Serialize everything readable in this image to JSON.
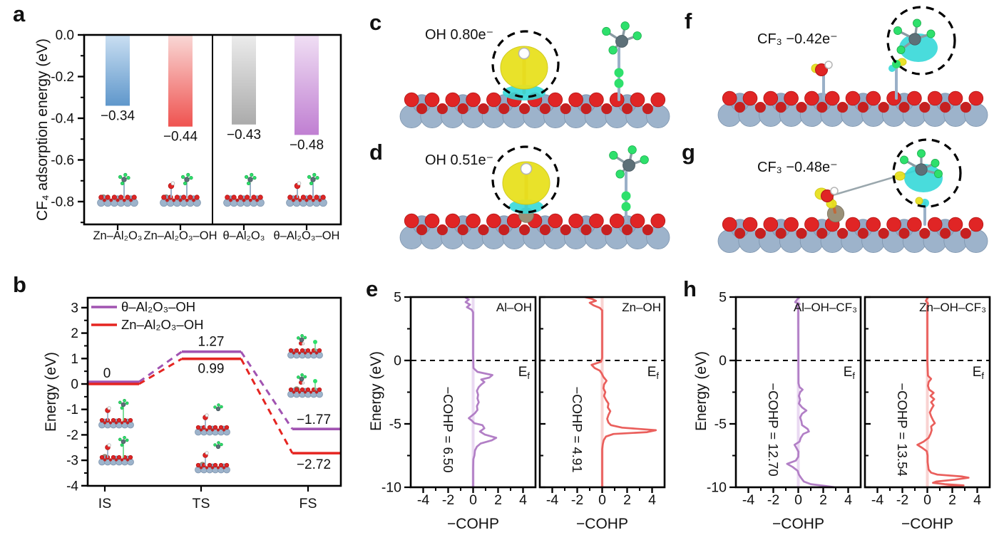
{
  "panels": {
    "a": {
      "label": "a"
    },
    "b": {
      "label": "b"
    },
    "c": {
      "label": "c",
      "annotation": "OH 0.80e⁻"
    },
    "d": {
      "label": "d",
      "annotation": "OH 0.51e⁻"
    },
    "e": {
      "label": "e"
    },
    "f": {
      "label": "f",
      "annotation": "CF₃ −0.42e⁻"
    },
    "g": {
      "label": "g",
      "annotation": "CF₃ −0.48e⁻"
    },
    "h": {
      "label": "h"
    }
  },
  "shared": {
    "fermi": {
      "main": "E",
      "sub": "f"
    }
  },
  "chart_data": [
    {
      "id": "a",
      "type": "bar",
      "ylabel": "CF₄ adsorption energy (eV)",
      "ylim": [
        -0.91,
        0
      ],
      "yticks": [
        {
          "v": 0,
          "label": "0.0"
        },
        {
          "v": -0.2,
          "label": "-0.2"
        },
        {
          "v": -0.4,
          "label": "-0.4"
        },
        {
          "v": -0.6,
          "label": "-0.6"
        },
        {
          "v": -0.8,
          "label": "-0.8"
        }
      ],
      "bars": [
        {
          "category": "Zn–Al₂O₃",
          "value": -0.34,
          "label": "−0.34",
          "color_top": "#cadff2",
          "color_bottom": "#5f97cb"
        },
        {
          "category": "Zn–Al₂O₃–OH",
          "value": -0.44,
          "label": "−0.44",
          "color_top": "#f9d8d6",
          "color_bottom": "#ef5350"
        },
        {
          "category": "θ–Al₂O₃",
          "value": -0.43,
          "label": "−0.43",
          "color_top": "#ececec",
          "color_bottom": "#ababab"
        },
        {
          "category": "θ–Al₂O₃–OH",
          "value": -0.48,
          "label": "−0.48",
          "color_top": "#f0dff4",
          "color_bottom": "#c07fd2"
        }
      ],
      "divider_after_bar": 2
    },
    {
      "id": "b",
      "type": "line",
      "ylabel": "Energy (eV)",
      "ylim": [
        -4,
        3
      ],
      "yticks": [
        3,
        2,
        1,
        0,
        -1,
        -2,
        -3,
        -4
      ],
      "categories": [
        "IS",
        "TS",
        "FS"
      ],
      "series": [
        {
          "name": "θ–Al₂O₃–OH",
          "color": "#a153b1",
          "values": [
            0,
            1.27,
            -1.77
          ],
          "value_labels": [
            "0",
            "1.27",
            "−1.77"
          ]
        },
        {
          "name": "Zn–Al₂O₃–OH",
          "color": "#e52521",
          "values": [
            0,
            0.99,
            -2.72
          ],
          "value_labels": [
            "0",
            "0.99",
            "−2.72"
          ]
        }
      ]
    },
    {
      "id": "e1",
      "type": "line",
      "corner_label": "Al–OH",
      "integral_label": "−COHP = 6.50",
      "xlabel": "−COHP",
      "ylabel": "Energy (eV)",
      "xlim": [
        -5,
        5
      ],
      "ylim": [
        -10,
        5
      ],
      "xticks": [
        -4,
        -2,
        0,
        2,
        4
      ],
      "yticks": [
        5,
        0,
        -5,
        -10
      ],
      "color": "#b27fc6",
      "band_color": "#ead9f2",
      "points": [
        [
          5,
          -0.65
        ],
        [
          4.8,
          -0.35
        ],
        [
          4.6,
          -0.6
        ],
        [
          4.4,
          -0.25
        ],
        [
          4.2,
          -0.5
        ],
        [
          4.0,
          -0.12
        ],
        [
          3.8,
          0
        ],
        [
          0.5,
          0
        ],
        [
          -0.6,
          0.03
        ],
        [
          -0.9,
          0.35
        ],
        [
          -1.15,
          1.55
        ],
        [
          -1.35,
          1.3
        ],
        [
          -1.5,
          0.65
        ],
        [
          -1.7,
          0.9
        ],
        [
          -1.9,
          0.65
        ],
        [
          -2.1,
          0.45
        ],
        [
          -2.4,
          0.3
        ],
        [
          -2.7,
          0.4
        ],
        [
          -3.0,
          0.35
        ],
        [
          -3.3,
          0.45
        ],
        [
          -3.6,
          0.3
        ],
        [
          -3.9,
          0.35
        ],
        [
          -4.15,
          0.15
        ],
        [
          -4.35,
          -0.1
        ],
        [
          -4.55,
          -0.35
        ],
        [
          -4.75,
          -0.1
        ],
        [
          -4.95,
          0.1
        ],
        [
          -5.1,
          0.75
        ],
        [
          -5.35,
          0.9
        ],
        [
          -5.6,
          0.55
        ],
        [
          -5.85,
          0.95
        ],
        [
          -6.1,
          1.85
        ],
        [
          -6.3,
          1.5
        ],
        [
          -6.55,
          0.6
        ],
        [
          -6.8,
          0.3
        ],
        [
          -7.1,
          0.15
        ],
        [
          -7.5,
          0.1
        ],
        [
          -7.8,
          0.02
        ],
        [
          -8.5,
          0
        ],
        [
          -10,
          0
        ]
      ]
    },
    {
      "id": "e2",
      "type": "line",
      "corner_label": "Zn–OH",
      "integral_label": "−COHP = 4.91",
      "xlabel": "−COHP",
      "ylabel": "Energy (eV)",
      "xlim": [
        -5,
        5
      ],
      "ylim": [
        -10,
        5
      ],
      "xticks": [
        -4,
        -2,
        0,
        2,
        4
      ],
      "yticks": [
        5,
        0,
        -5,
        -10
      ],
      "color": "#ea5f5c",
      "band_color": "#f9d3d2",
      "points": [
        [
          5,
          -1.4
        ],
        [
          4.85,
          -0.8
        ],
        [
          4.7,
          -0.5
        ],
        [
          4.55,
          -1.0
        ],
        [
          4.35,
          -0.7
        ],
        [
          4.15,
          -0.2
        ],
        [
          3.95,
          0
        ],
        [
          1,
          0
        ],
        [
          0.2,
          0
        ],
        [
          -0.1,
          -0.1
        ],
        [
          -0.35,
          -0.85
        ],
        [
          -0.6,
          -0.6
        ],
        [
          -0.8,
          -0.2
        ],
        [
          -1.0,
          -0.05
        ],
        [
          -1.3,
          0.1
        ],
        [
          -1.6,
          0.35
        ],
        [
          -1.9,
          0.15
        ],
        [
          -2.2,
          0.1
        ],
        [
          -2.5,
          0.25
        ],
        [
          -2.8,
          0.15
        ],
        [
          -3.1,
          0.3
        ],
        [
          -3.4,
          0.5
        ],
        [
          -3.7,
          0.45
        ],
        [
          -4.0,
          0.65
        ],
        [
          -4.3,
          0.5
        ],
        [
          -4.6,
          0.4
        ],
        [
          -4.9,
          0.5
        ],
        [
          -5.1,
          0.7
        ],
        [
          -5.3,
          1.6
        ],
        [
          -5.5,
          4.3
        ],
        [
          -5.65,
          3.6
        ],
        [
          -5.8,
          0.9
        ],
        [
          -6.0,
          0.3
        ],
        [
          -6.3,
          0.12
        ],
        [
          -6.6,
          0.05
        ],
        [
          -7.0,
          0
        ],
        [
          -10,
          0
        ]
      ]
    },
    {
      "id": "h1",
      "type": "line",
      "corner_label": "Al–OH–CF₃",
      "integral_label": "−COHP = 12.70",
      "xlabel": "−COHP",
      "ylabel": "Energy (eV)",
      "xlim": [
        -5,
        5
      ],
      "ylim": [
        -10,
        5
      ],
      "xticks": [
        -4,
        -2,
        0,
        2,
        4
      ],
      "yticks": [
        5,
        0,
        -5,
        -10
      ],
      "color": "#b27fc6",
      "band_color": "#ead9f2",
      "points": [
        [
          5,
          0.1
        ],
        [
          4.8,
          -0.1
        ],
        [
          4.6,
          -0.25
        ],
        [
          4.45,
          0.1
        ],
        [
          4.3,
          -0.15
        ],
        [
          4.1,
          0
        ],
        [
          3,
          0
        ],
        [
          -1.8,
          0.02
        ],
        [
          -2.1,
          0.1
        ],
        [
          -2.3,
          0.35
        ],
        [
          -2.5,
          0.15
        ],
        [
          -2.8,
          0.05
        ],
        [
          -3.1,
          0.15
        ],
        [
          -3.4,
          0.05
        ],
        [
          -3.7,
          0.3
        ],
        [
          -3.95,
          0.65
        ],
        [
          -4.2,
          0.3
        ],
        [
          -4.5,
          0.15
        ],
        [
          -4.8,
          0.25
        ],
        [
          -5.1,
          0.3
        ],
        [
          -5.4,
          0.75
        ],
        [
          -5.6,
          0.85
        ],
        [
          -5.8,
          0.4
        ],
        [
          -6.1,
          0.2
        ],
        [
          -6.4,
          0.1
        ],
        [
          -6.65,
          -0.3
        ],
        [
          -6.9,
          -0.15
        ],
        [
          -7.2,
          0.02
        ],
        [
          -7.6,
          0
        ],
        [
          -7.9,
          -0.2
        ],
        [
          -8.15,
          -0.9
        ],
        [
          -8.4,
          -0.45
        ],
        [
          -8.7,
          -0.05
        ],
        [
          -9.0,
          0.05
        ],
        [
          -9.3,
          0.25
        ],
        [
          -9.55,
          0.45
        ],
        [
          -9.75,
          1.0
        ],
        [
          -9.9,
          2.2
        ],
        [
          -10,
          2.9
        ]
      ]
    },
    {
      "id": "h2",
      "type": "line",
      "corner_label": "Zn–OH–CF₃",
      "integral_label": "−COHP = 13.54",
      "xlabel": "−COHP",
      "ylabel": "Energy (eV)",
      "xlim": [
        -5,
        5
      ],
      "ylim": [
        -10,
        5
      ],
      "xticks": [
        -4,
        -2,
        0,
        2,
        4
      ],
      "yticks": [
        5,
        0,
        -5,
        -10
      ],
      "color": "#ea5f5c",
      "band_color": "#f9d3d2",
      "points": [
        [
          5,
          0.05
        ],
        [
          4.7,
          -0.12
        ],
        [
          4.5,
          0.05
        ],
        [
          4.2,
          0
        ],
        [
          0,
          0
        ],
        [
          -1.2,
          0.05
        ],
        [
          -1.45,
          0.3
        ],
        [
          -1.7,
          0.1
        ],
        [
          -2.0,
          0.05
        ],
        [
          -2.3,
          0.15
        ],
        [
          -2.55,
          0.5
        ],
        [
          -2.8,
          0.25
        ],
        [
          -3.05,
          0.55
        ],
        [
          -3.3,
          0.3
        ],
        [
          -3.55,
          0.5
        ],
        [
          -3.8,
          0.35
        ],
        [
          -4.1,
          0.2
        ],
        [
          -4.4,
          0.3
        ],
        [
          -4.7,
          0.45
        ],
        [
          -4.95,
          0.6
        ],
        [
          -5.2,
          0.3
        ],
        [
          -5.5,
          0.35
        ],
        [
          -5.8,
          0.25
        ],
        [
          -6.1,
          0.1
        ],
        [
          -6.4,
          -0.3
        ],
        [
          -6.65,
          -0.8
        ],
        [
          -6.9,
          -0.4
        ],
        [
          -7.15,
          -0.05
        ],
        [
          -7.5,
          0.02
        ],
        [
          -8.0,
          0.02
        ],
        [
          -8.6,
          0.1
        ],
        [
          -8.85,
          0.3
        ],
        [
          -9.0,
          0.8
        ],
        [
          -9.15,
          2.8
        ],
        [
          -9.25,
          3.3
        ],
        [
          -9.4,
          2.2
        ],
        [
          -9.55,
          0.7
        ],
        [
          -9.65,
          0.45
        ],
        [
          -9.75,
          1.4
        ],
        [
          -9.85,
          2.9
        ],
        [
          -9.95,
          1.5
        ],
        [
          -10,
          0.9
        ]
      ]
    }
  ]
}
